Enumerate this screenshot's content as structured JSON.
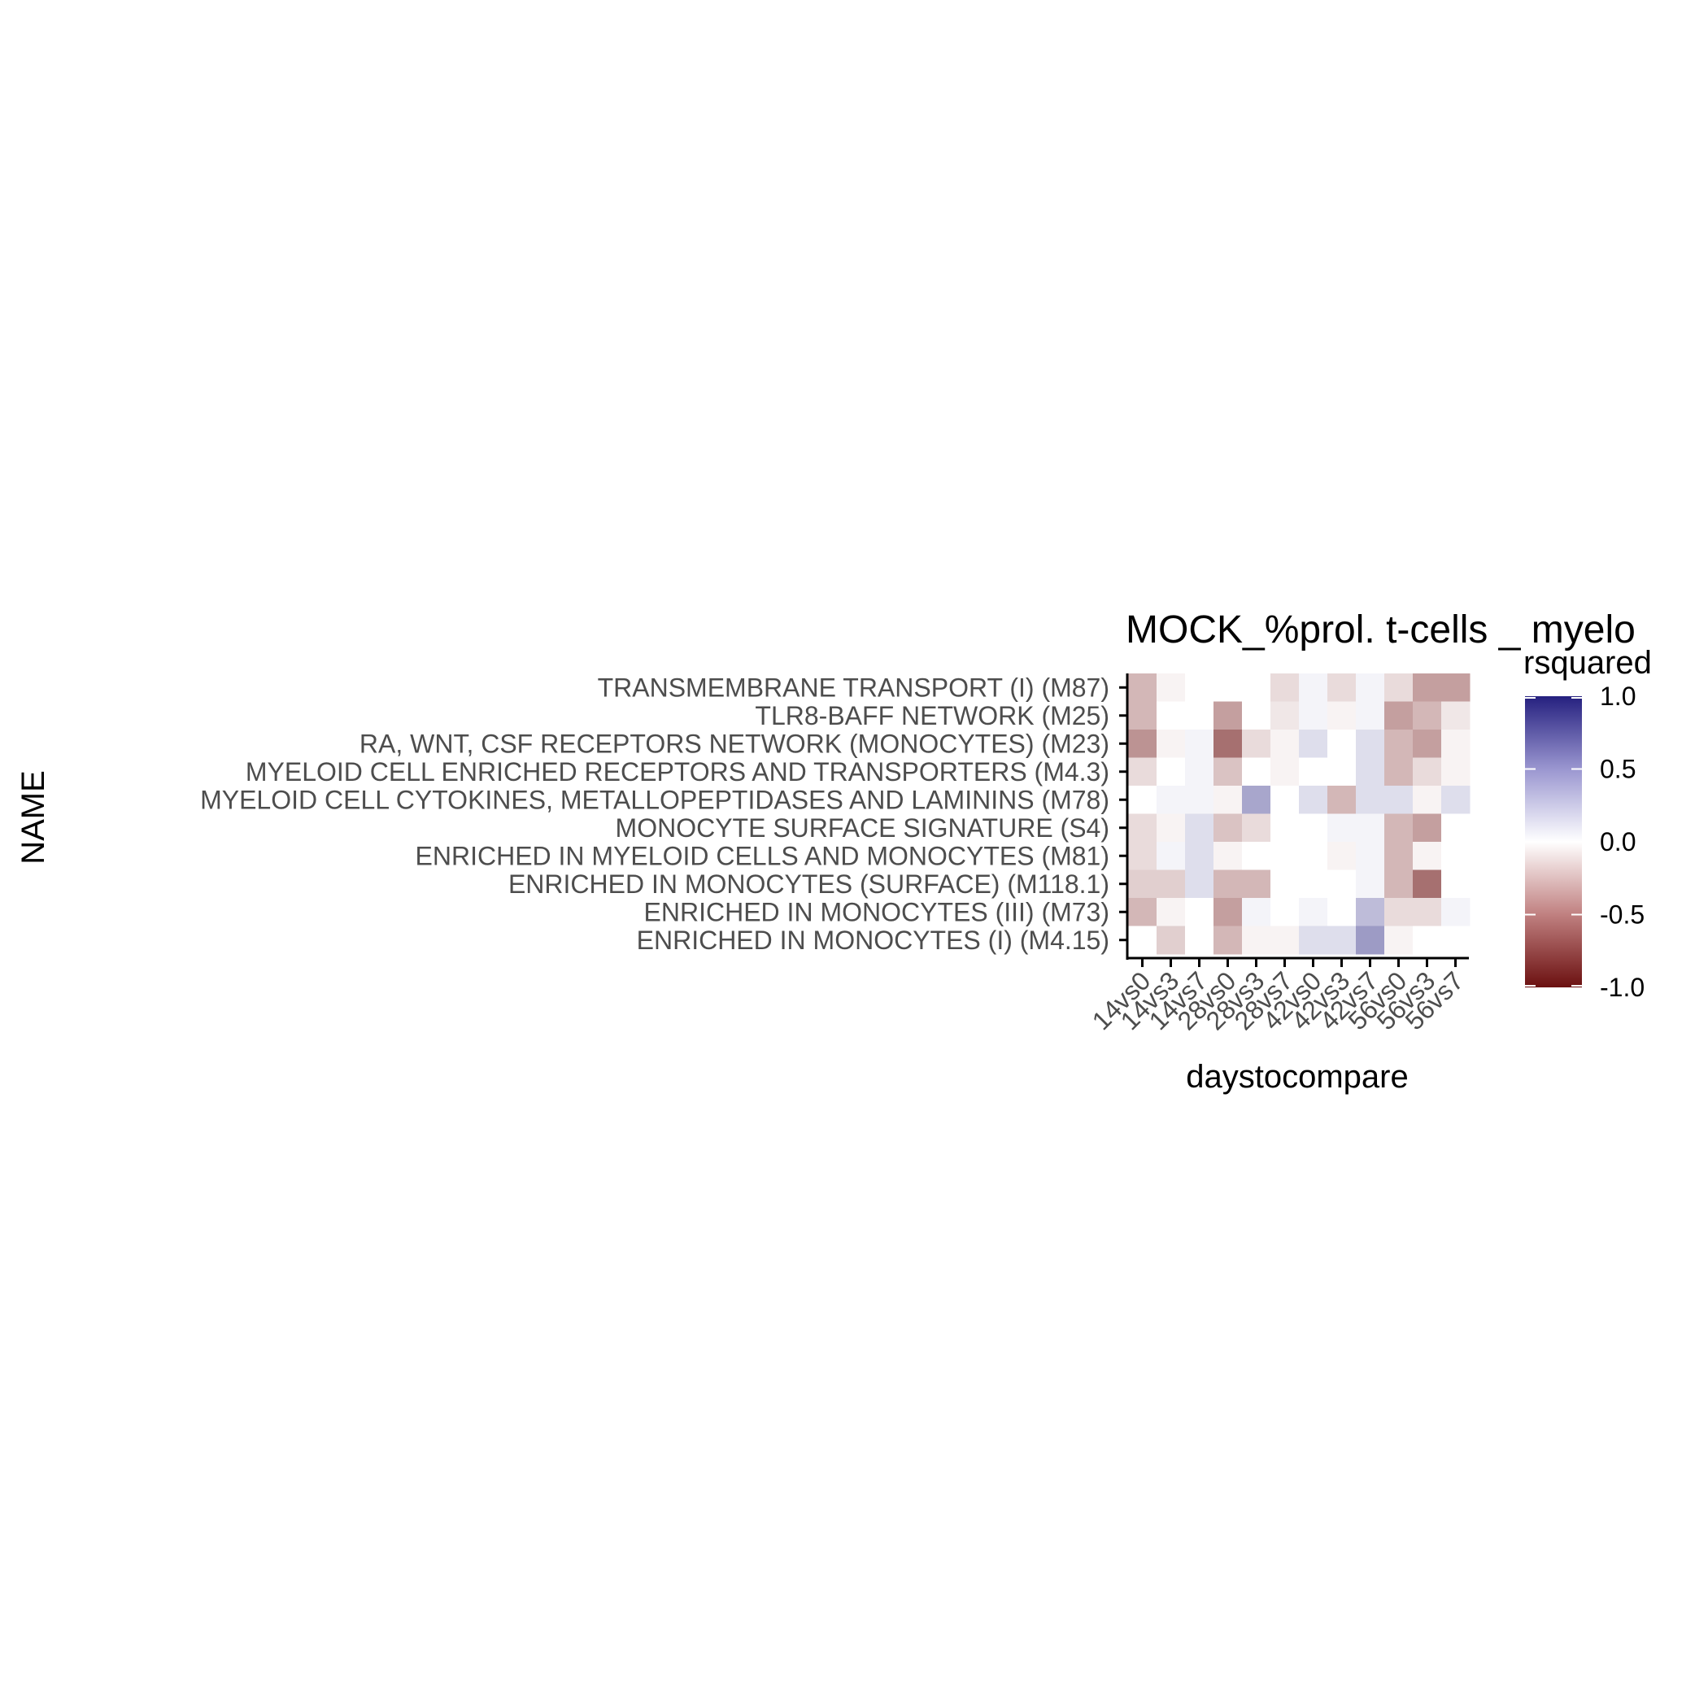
{
  "chart_data": {
    "type": "heatmap",
    "title": "MOCK_%prol. t-cells _ myelo",
    "xlabel": "daystocompare",
    "ylabel": "NAME",
    "x_categories": [
      "14vs0",
      "14vs3",
      "14vs7",
      "28vs0",
      "28vs3",
      "28vs7",
      "42vs0",
      "42vs3",
      "42vs7",
      "56vs0",
      "56vs3",
      "56vs7"
    ],
    "y_categories": [
      "TRANSMEMBRANE TRANSPORT (I) (M87)",
      "TLR8-BAFF NETWORK (M25)",
      "RA, WNT, CSF RECEPTORS NETWORK (MONOCYTES) (M23)",
      "MYELOID CELL ENRICHED RECEPTORS AND TRANSPORTERS (M4.3)",
      "MYELOID CELL CYTOKINES, METALLOPEPTIDASES AND LAMININS (M78)",
      "MONOCYTE SURFACE SIGNATURE (S4)",
      "ENRICHED IN MYELOID CELLS AND MONOCYTES (M81)",
      "ENRICHED IN MONOCYTES (SURFACE) (M118.1)",
      "ENRICHED IN MONOCYTES (III) (M73)",
      "ENRICHED IN MONOCYTES (I) (M4.15)"
    ],
    "values": [
      [
        -0.3,
        -0.05,
        0.0,
        0.0,
        0.0,
        -0.15,
        0.05,
        -0.15,
        0.05,
        -0.15,
        -0.4,
        -0.4
      ],
      [
        -0.3,
        0.0,
        0.0,
        -0.4,
        0.0,
        -0.1,
        0.05,
        -0.05,
        0.05,
        -0.4,
        -0.3,
        -0.1
      ],
      [
        -0.45,
        -0.05,
        0.05,
        -0.6,
        -0.15,
        -0.05,
        0.15,
        0.0,
        0.15,
        -0.3,
        -0.4,
        -0.05
      ],
      [
        -0.15,
        0.0,
        0.05,
        -0.25,
        0.0,
        -0.05,
        0.0,
        0.0,
        0.15,
        -0.3,
        -0.15,
        -0.05
      ],
      [
        0.0,
        0.05,
        0.05,
        -0.05,
        0.4,
        0.0,
        0.15,
        -0.3,
        0.15,
        0.15,
        -0.05,
        0.15
      ],
      [
        -0.15,
        -0.05,
        0.15,
        -0.25,
        -0.15,
        0.0,
        0.0,
        0.05,
        0.05,
        -0.3,
        -0.4,
        0.0
      ],
      [
        -0.15,
        0.05,
        0.15,
        -0.05,
        0.0,
        0.0,
        0.0,
        -0.05,
        0.05,
        -0.3,
        -0.05,
        0.0
      ],
      [
        -0.2,
        -0.2,
        0.15,
        -0.3,
        -0.3,
        0.0,
        0.0,
        0.0,
        0.05,
        -0.3,
        -0.6,
        0.0
      ],
      [
        -0.3,
        -0.05,
        0.0,
        -0.4,
        0.05,
        0.0,
        0.05,
        0.0,
        0.3,
        -0.15,
        -0.15,
        0.05
      ],
      [
        0.0,
        -0.2,
        0.0,
        -0.3,
        -0.05,
        -0.05,
        0.15,
        0.15,
        0.45,
        -0.05,
        0.0,
        0.0
      ]
    ],
    "legend": {
      "title": "rsquared",
      "placement": "right",
      "ticks": [
        "1.0",
        "0.5",
        "0.0",
        "-0.5",
        "-1.0"
      ],
      "range": [
        -1.0,
        1.0
      ],
      "colors": {
        "low": "#6b1010",
        "mid": "#ffffff",
        "high": "#25207f"
      }
    },
    "grid": false
  }
}
